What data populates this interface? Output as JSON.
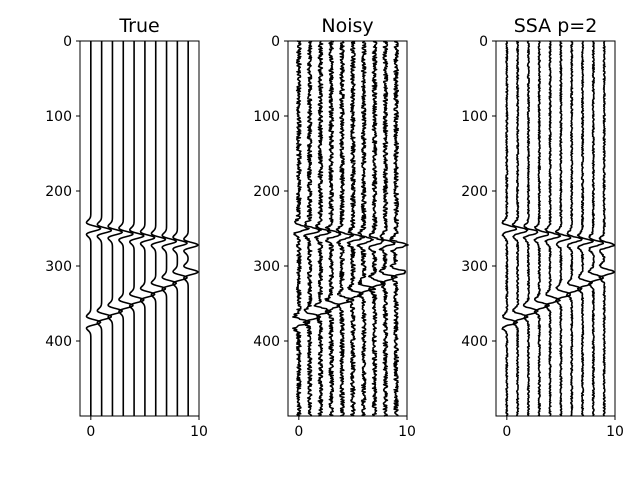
{
  "chart_data": [
    {
      "type": "line",
      "title": "True",
      "xlabel": "",
      "ylabel": "",
      "xlim": [
        -1,
        10
      ],
      "ylim": [
        500,
        0
      ],
      "xticks": [
        0,
        10
      ],
      "yticks": [
        0,
        100,
        200,
        300,
        400
      ],
      "trace_offsets": [
        0,
        1,
        2,
        3,
        4,
        5,
        6,
        7,
        8,
        9
      ],
      "events": [
        {
          "t_at_trace0": 250,
          "t_at_trace9": 272
        },
        {
          "t_at_trace0": 375,
          "t_at_trace9": 308
        }
      ],
      "noise_amplitude": 0,
      "grid": false
    },
    {
      "type": "line",
      "title": "Noisy",
      "xlabel": "",
      "ylabel": "",
      "xlim": [
        -1,
        10
      ],
      "ylim": [
        500,
        0
      ],
      "xticks": [
        0,
        10
      ],
      "yticks": [
        0,
        100,
        200,
        300,
        400
      ],
      "trace_offsets": [
        0,
        1,
        2,
        3,
        4,
        5,
        6,
        7,
        8,
        9
      ],
      "events": [
        {
          "t_at_trace0": 250,
          "t_at_trace9": 272
        },
        {
          "t_at_trace0": 375,
          "t_at_trace9": 308
        }
      ],
      "noise_amplitude": 0.22,
      "grid": false
    },
    {
      "type": "line",
      "title": "SSA p=2",
      "xlabel": "",
      "ylabel": "",
      "xlim": [
        -1,
        10
      ],
      "ylim": [
        500,
        0
      ],
      "xticks": [
        0,
        10
      ],
      "yticks": [
        0,
        100,
        200,
        300,
        400
      ],
      "trace_offsets": [
        0,
        1,
        2,
        3,
        4,
        5,
        6,
        7,
        8,
        9
      ],
      "events": [
        {
          "t_at_trace0": 250,
          "t_at_trace9": 272
        },
        {
          "t_at_trace0": 375,
          "t_at_trace9": 308
        }
      ],
      "noise_amplitude": 0.09,
      "grid": false
    }
  ]
}
